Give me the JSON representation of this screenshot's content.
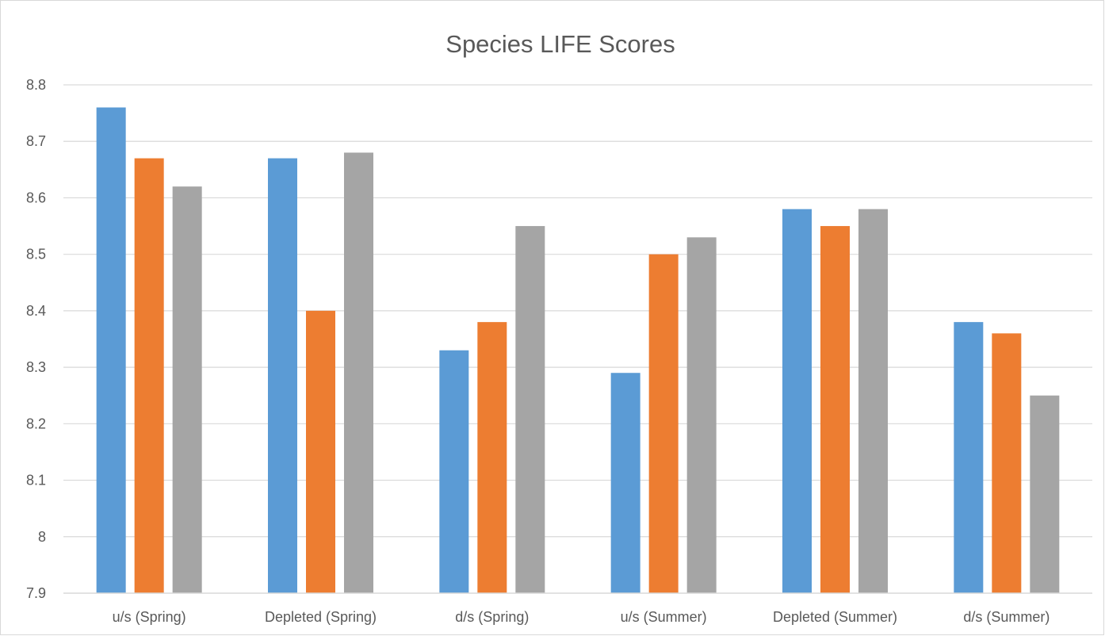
{
  "chart_data": {
    "type": "bar",
    "title": "Species LIFE Scores",
    "xlabel": "",
    "ylabel": "",
    "categories": [
      "u/s (Spring)",
      "Depleted (Spring)",
      "d/s (Spring)",
      "u/s (Summer)",
      "Depleted (Summer)",
      "d/s (Summer)"
    ],
    "series": [
      {
        "values": [
          8.76,
          8.67,
          8.33,
          8.29,
          8.58,
          8.38
        ],
        "color": "#5b9bd5"
      },
      {
        "values": [
          8.67,
          8.4,
          8.38,
          8.5,
          8.55,
          8.36
        ],
        "color": "#ed7d31"
      },
      {
        "values": [
          8.62,
          8.68,
          8.55,
          8.53,
          8.58,
          8.25
        ],
        "color": "#a5a5a5"
      }
    ],
    "ylim": [
      7.9,
      8.8
    ],
    "yticks": [
      "7.9",
      "8",
      "8.1",
      "8.2",
      "8.3",
      "8.4",
      "8.5",
      "8.6",
      "8.7",
      "8.8"
    ],
    "grid": true,
    "legend": "none"
  }
}
